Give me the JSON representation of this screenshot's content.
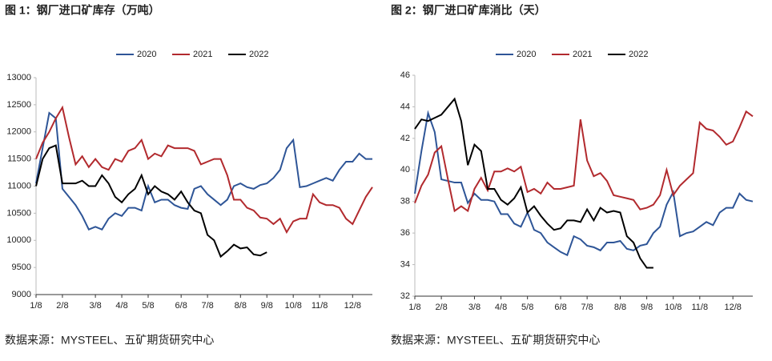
{
  "chart_data": [
    {
      "type": "line",
      "title": "图 1：钢厂进口矿库存（万吨）",
      "source": "数据来源：MYSTEEL、五矿期货研究中心",
      "categories": [
        "1/8",
        null,
        null,
        null,
        "2/8",
        null,
        null,
        null,
        null,
        "3/8",
        null,
        null,
        null,
        "4/8",
        null,
        null,
        null,
        "5/8",
        null,
        null,
        null,
        null,
        "6/8",
        null,
        null,
        null,
        "7/8",
        null,
        null,
        null,
        null,
        "8/8",
        null,
        null,
        null,
        "9/8",
        null,
        null,
        null,
        "10/8",
        null,
        null,
        null,
        "11/8",
        null,
        null,
        null,
        null,
        "12/8",
        null,
        null,
        null
      ],
      "ylim": [
        9000,
        13000
      ],
      "yticks": [
        9000,
        9500,
        10000,
        10500,
        11000,
        11500,
        12000,
        12500,
        13000
      ],
      "series": [
        {
          "name": "2020",
          "color": "#2e5597",
          "values": [
            11050,
            11700,
            12350,
            12250,
            10950,
            10800,
            10650,
            10450,
            10200,
            10250,
            10200,
            10400,
            10500,
            10450,
            10600,
            10600,
            10550,
            11000,
            10700,
            10750,
            10750,
            10650,
            10600,
            10580,
            10950,
            11000,
            10850,
            10750,
            10650,
            10750,
            11000,
            11050,
            10980,
            10950,
            11020,
            11050,
            11150,
            11300,
            11700,
            11850,
            10980,
            11000,
            11050,
            11100,
            11150,
            11100,
            11300,
            11450,
            11450,
            11600,
            11500,
            11500
          ]
        },
        {
          "name": "2021",
          "color": "#b22a2e",
          "values": [
            11500,
            11800,
            12000,
            12250,
            12450,
            11900,
            11400,
            11550,
            11350,
            11500,
            11350,
            11300,
            11500,
            11450,
            11650,
            11700,
            11850,
            11500,
            11600,
            11550,
            11750,
            11700,
            11700,
            11700,
            11650,
            11400,
            11450,
            11500,
            11500,
            11200,
            10750,
            10750,
            10600,
            10550,
            10420,
            10400,
            10300,
            10400,
            10150,
            10350,
            10400,
            10400,
            10850,
            10700,
            10650,
            10650,
            10600,
            10400,
            10300,
            10550,
            10800,
            10980
          ]
        },
        {
          "name": "2022",
          "color": "#000000",
          "values": [
            11000,
            11500,
            11700,
            11750,
            11050,
            11050,
            11050,
            11100,
            11000,
            11000,
            11200,
            11050,
            10800,
            10700,
            10850,
            10950,
            11200,
            10850,
            11000,
            10900,
            10850,
            10750,
            10900,
            10700,
            10550,
            10500,
            10100,
            10000,
            9700,
            9800,
            9920,
            9850,
            9870,
            9740,
            9720,
            9780,
            null,
            null,
            null,
            null,
            null,
            null,
            null,
            null,
            null,
            null,
            null,
            null,
            null,
            null,
            null,
            null
          ]
        }
      ]
    },
    {
      "type": "line",
      "title": "图 2：钢厂进口矿库消比（天）",
      "source": "数据来源：MYSTEEL、五矿期货研究中心",
      "categories": [
        "1/8",
        null,
        null,
        null,
        "2/8",
        null,
        null,
        null,
        null,
        "3/8",
        null,
        null,
        null,
        "4/8",
        null,
        null,
        null,
        "5/8",
        null,
        null,
        null,
        null,
        "6/8",
        null,
        null,
        null,
        "7/8",
        null,
        null,
        null,
        null,
        "8/8",
        null,
        null,
        null,
        "9/8",
        null,
        null,
        null,
        "10/8",
        null,
        null,
        null,
        "11/8",
        null,
        null,
        null,
        null,
        "12/8",
        null,
        null,
        null
      ],
      "ylim": [
        32,
        46
      ],
      "yticks": [
        32,
        34,
        36,
        38,
        40,
        42,
        44,
        46
      ],
      "series": [
        {
          "name": "2020",
          "color": "#2e5597",
          "values": [
            38.5,
            41.2,
            43.6,
            42.4,
            39.4,
            39.3,
            39.2,
            39.2,
            37.9,
            38.5,
            38.1,
            38.1,
            38.0,
            37.2,
            37.2,
            36.6,
            36.4,
            37.3,
            36.2,
            36.0,
            35.4,
            35.1,
            34.8,
            34.6,
            35.8,
            35.6,
            35.2,
            35.1,
            34.9,
            35.4,
            35.4,
            35.5,
            35.0,
            34.9,
            35.2,
            35.3,
            36.0,
            36.4,
            37.8,
            38.6,
            35.8,
            36.0,
            36.1,
            36.4,
            36.7,
            36.5,
            37.3,
            37.6,
            37.6,
            38.5,
            38.1,
            38.0
          ]
        },
        {
          "name": "2021",
          "color": "#b22a2e",
          "values": [
            37.9,
            39.0,
            39.7,
            41.1,
            41.5,
            39.4,
            37.4,
            37.7,
            37.4,
            38.8,
            39.5,
            38.7,
            39.9,
            39.9,
            40.1,
            39.9,
            40.2,
            38.6,
            38.8,
            38.5,
            39.2,
            38.8,
            38.8,
            38.9,
            39.0,
            43.2,
            40.6,
            39.6,
            39.8,
            39.3,
            38.4,
            38.3,
            38.2,
            38.1,
            37.5,
            37.6,
            37.8,
            38.4,
            40.0,
            38.4,
            39.0,
            39.4,
            39.8,
            43.0,
            42.6,
            42.5,
            42.1,
            41.6,
            41.8,
            42.7,
            43.7,
            43.4
          ]
        },
        {
          "name": "2022",
          "color": "#000000",
          "values": [
            42.6,
            43.2,
            43.1,
            43.3,
            43.5,
            44.0,
            44.5,
            43.1,
            40.3,
            41.6,
            41.2,
            38.8,
            38.8,
            38.1,
            37.8,
            38.2,
            38.9,
            37.3,
            37.7,
            37.1,
            36.6,
            36.2,
            36.3,
            36.8,
            36.8,
            36.7,
            37.5,
            36.8,
            37.6,
            37.3,
            37.4,
            37.3,
            35.8,
            35.4,
            34.4,
            33.8,
            33.8,
            null,
            null,
            null,
            null,
            null,
            null,
            null,
            null,
            null,
            null,
            null,
            null,
            null,
            null,
            null
          ]
        }
      ]
    }
  ]
}
